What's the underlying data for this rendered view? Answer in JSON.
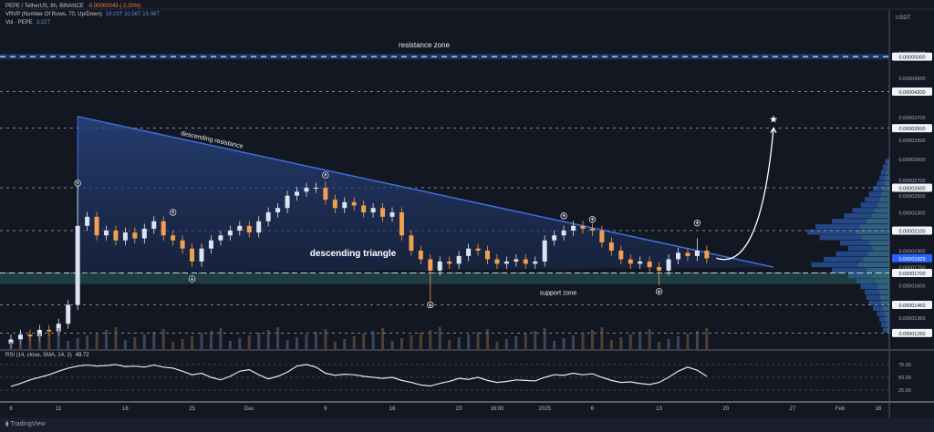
{
  "header": {
    "symbol": "PEPE / TetherUS, 8h, BINANCE",
    "change": "-0.00000043 (-2.30%)",
    "vrvp": "VRVP (Number Of Rows, 70, Up/Down)",
    "vrvp_values": "19.03T  10.56T  15.06T",
    "vol": "Vol · PEPE",
    "vol_value": "3.22T",
    "currency": "USDT",
    "rsi_label": "RSI (14, close, SMA, 14, 2)",
    "rsi_value": "49.72"
  },
  "footer": {
    "logo_text": "TradingView"
  },
  "colors": {
    "background": "#131722",
    "up": "#dbe4f2",
    "down": "#f0a050",
    "triangle": "#2a4a8c",
    "zone": "#3b63c4",
    "current_price": "#2962ff"
  },
  "chart_data": [
    {
      "type": "candlestick",
      "scale": "log",
      "grid": false,
      "price_axis_labels": [
        "0.00005100",
        "0.00005000",
        "0.00004500",
        "0.00004200",
        "0.00003700",
        "0.00003500",
        "0.00003300",
        "0.00003000",
        "0.00002700",
        "0.00002600",
        "0.00002500",
        "0.00002300",
        "0.00002100",
        "0.00001900",
        "0.00001829",
        "0.00001750",
        "0.00001700",
        "0.00001600",
        "0.00001450",
        "0.00001360",
        "0.00001260"
      ],
      "highlighted_levels": [
        "0.00005000",
        "0.00004200",
        "0.00003500",
        "0.00002600",
        "0.00002100",
        "0.00001700",
        "0.00001450",
        "0.00001260"
      ],
      "current_price": "0.00001829",
      "time_ticks": [
        {
          "label": "6",
          "date": "2024-11-06"
        },
        {
          "label": "11",
          "date": "2024-11-11"
        },
        {
          "label": "18",
          "date": "2024-11-18"
        },
        {
          "label": "25",
          "date": "2024-11-25"
        },
        {
          "label": "Dec",
          "date": "2024-12-01"
        },
        {
          "label": "9",
          "date": "2024-12-09"
        },
        {
          "label": "16",
          "date": "2024-12-16"
        },
        {
          "label": "23",
          "date": "2024-12-23"
        },
        {
          "label": "16:00",
          "date": "2024-12-27"
        },
        {
          "label": "2025",
          "date": "2025-01-01"
        },
        {
          "label": "6",
          "date": "2025-01-06"
        },
        {
          "label": "13",
          "date": "2025-01-13"
        },
        {
          "label": "20",
          "date": "2025-01-20"
        },
        {
          "label": "27",
          "date": "2025-01-27"
        },
        {
          "label": "Feb",
          "date": "2025-02-01"
        },
        {
          "label": "16",
          "date": "2025-02-05"
        }
      ],
      "series": {
        "dates_from": "2024-11-06",
        "closes": [
          1.22e-05,
          1.25e-05,
          1.24e-05,
          1.28e-05,
          1.27e-05,
          1.32e-05,
          1.45e-05,
          2.15e-05,
          2.25e-05,
          2.05e-05,
          2.1e-05,
          2e-05,
          2.08e-05,
          2.02e-05,
          2.12e-05,
          2.2e-05,
          2.05e-05,
          2e-05,
          1.92e-05,
          1.8e-05,
          1.92e-05,
          2e-05,
          2.05e-05,
          2.1e-05,
          2.15e-05,
          2.08e-05,
          2.2e-05,
          2.3e-05,
          2.35e-05,
          2.5e-05,
          2.55e-05,
          2.6e-05,
          2.6e-05,
          2.45e-05,
          2.35e-05,
          2.42e-05,
          2.38e-05,
          2.3e-05,
          2.35e-05,
          2.25e-05,
          2.3e-05,
          2.05e-05,
          1.9e-05,
          1.82e-05,
          1.72e-05,
          1.8e-05,
          1.78e-05,
          1.85e-05,
          1.92e-05,
          1.9e-05,
          1.82e-05,
          1.78e-05,
          1.8e-05,
          1.82e-05,
          1.78e-05,
          1.8e-05,
          2e-05,
          2.05e-05,
          2.1e-05,
          2.15e-05,
          2.12e-05,
          2.1e-05,
          1.98e-05,
          1.9e-05,
          1.82e-05,
          1.78e-05,
          1.8e-05,
          1.75e-05,
          1.72e-05,
          1.82e-05,
          1.88e-05,
          1.85e-05,
          1.9e-05,
          1.829e-05
        ],
        "notable_wicks": [
          {
            "date": "2024-11-13",
            "high": 2.7e-05
          },
          {
            "date": "2024-12-09",
            "high": 2.68e-05
          },
          {
            "date": "2024-12-20",
            "low": 1.48e-05
          },
          {
            "date": "2025-01-13",
            "low": 1.6e-05
          },
          {
            "date": "2025-01-17",
            "high": 2.02e-05
          }
        ]
      },
      "volume_profile": [
        0.05,
        0.08,
        0.1,
        0.12,
        0.15,
        0.2,
        0.25,
        0.3,
        0.35,
        0.45,
        0.55,
        0.7,
        0.9,
        1.0,
        0.85,
        0.6,
        0.5,
        0.65,
        0.8,
        0.95,
        0.7,
        0.5,
        0.4,
        0.35,
        0.3,
        0.28,
        0.25,
        0.2,
        0.15,
        0.12,
        0.1,
        0.08
      ],
      "annotations": {
        "resistance_zone": {
          "label": "resistance zone",
          "price": "0.00005000"
        },
        "descending_resistance": {
          "label": "descending resistance",
          "from": {
            "date": "2024-11-13",
            "price": 3.71e-05
          },
          "to": {
            "date": "2025-01-25",
            "price": 1.75e-05
          }
        },
        "triangle_label": "descending triangle",
        "triangle_base": 1.7e-05,
        "support_zone": {
          "label": "support zone",
          "top": 1.7e-05,
          "bottom": 1.61e-05
        },
        "projection": {
          "from": {
            "date": "2025-01-19",
            "price": 1.83e-05
          },
          "to": {
            "date": "2025-01-25",
            "price": 3.5e-05
          },
          "target_icon": "star-icon"
        },
        "peak_markers": [
          {
            "date": "2024-11-13",
            "price": 2.66e-05
          },
          {
            "date": "2024-11-23",
            "price": 2.3e-05
          },
          {
            "date": "2024-12-09",
            "price": 2.77e-05
          },
          {
            "date": "2025-01-03",
            "price": 2.26e-05
          },
          {
            "date": "2025-01-06",
            "price": 2.22e-05
          },
          {
            "date": "2025-01-17",
            "price": 2.18e-05
          }
        ],
        "trough_markers": [
          {
            "date": "2024-11-25",
            "price": 1.65e-05
          },
          {
            "date": "2024-12-20",
            "price": 1.45e-05
          },
          {
            "date": "2025-01-13",
            "price": 1.55e-05
          }
        ]
      }
    },
    {
      "type": "line",
      "title": "RSI (14, close, SMA, 14, 2)",
      "ylim": [
        0,
        100
      ],
      "y_ticks": [
        "75.00",
        "50.00",
        "25.00"
      ],
      "dates_from": "2024-11-06",
      "values": [
        32,
        38,
        45,
        50,
        55,
        62,
        68,
        72,
        74,
        72,
        73,
        75,
        71,
        72,
        70,
        74,
        70,
        68,
        62,
        55,
        58,
        50,
        45,
        52,
        62,
        65,
        55,
        47,
        52,
        60,
        72,
        75,
        70,
        58,
        54,
        56,
        55,
        52,
        50,
        48,
        50,
        44,
        40,
        35,
        33,
        38,
        42,
        48,
        46,
        50,
        44,
        40,
        42,
        45,
        44,
        43,
        50,
        55,
        54,
        58,
        55,
        57,
        50,
        44,
        40,
        41,
        38,
        36,
        40,
        50,
        62,
        70,
        64,
        52
      ]
    }
  ]
}
